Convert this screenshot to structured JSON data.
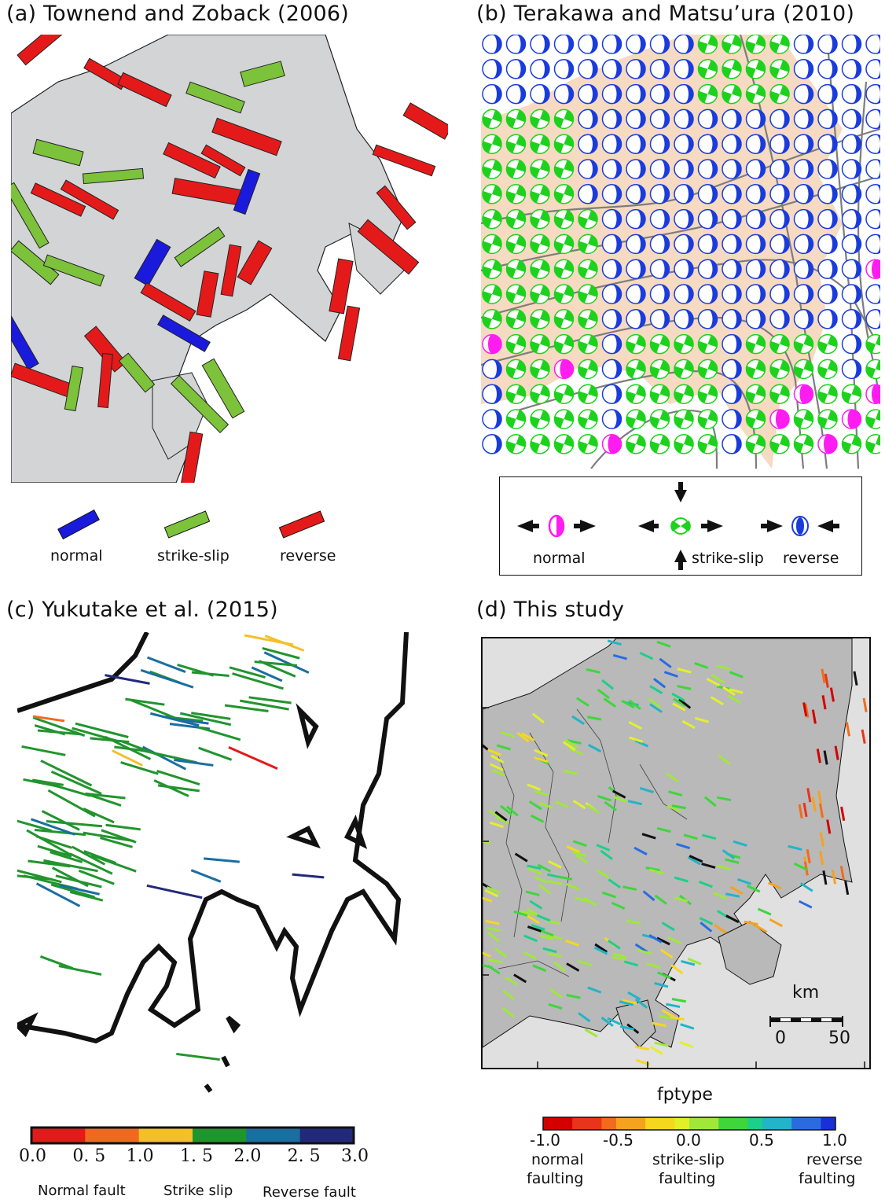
{
  "panels": {
    "a": {
      "title": "(a)  Townend and Zoback (2006)",
      "legend": [
        {
          "label": "normal",
          "color": "#1a1adc"
        },
        {
          "label": "strike-slip",
          "color": "#7cc23a"
        },
        {
          "label": "reverse",
          "color": "#e41a1a"
        }
      ]
    },
    "b": {
      "title": "(b)  Terakawa and Matsu’ura (2010)",
      "legend": [
        {
          "label": "normal",
          "color": "#ff1cf0"
        },
        {
          "label": "strike-slip",
          "color": "#1dd21d"
        },
        {
          "label": "reverse",
          "color": "#1a3cdc"
        }
      ]
    },
    "c": {
      "title": "(c)  Yukutake et al. (2015)",
      "colorbar": {
        "colors": [
          "#e41a1a",
          "#ee6a22",
          "#f3c02a",
          "#22942e",
          "#1a6ea0",
          "#23297a"
        ],
        "ticks": [
          "0.0",
          "0. 5",
          "1.0",
          "1. 5",
          "2.0",
          "2. 5",
          "3.0"
        ],
        "labels": [
          "Normal fault",
          "Strike slip",
          "Reverse fault"
        ]
      }
    },
    "d": {
      "title": "(d)  This study",
      "scale": {
        "unit": "km",
        "ticks": [
          "0",
          "50"
        ]
      },
      "colorbar": {
        "title": "fptype",
        "ticks": [
          "-1.0",
          "-0.5",
          "0.0",
          "0.5",
          "1.0"
        ],
        "labels_line1": [
          "normal",
          "strike-slip",
          "reverse"
        ],
        "labels_line2": [
          "faulting",
          "faulting",
          "faulting"
        ]
      }
    }
  }
}
